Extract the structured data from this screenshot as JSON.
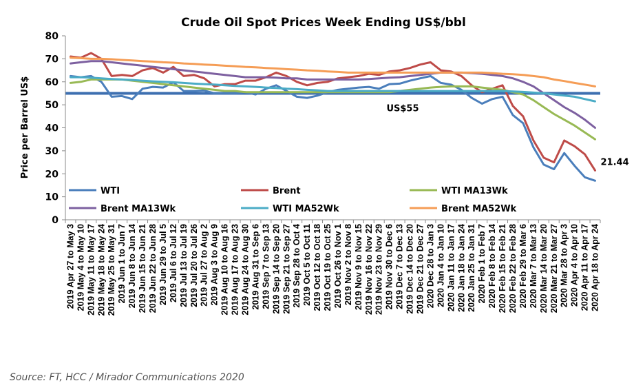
{
  "chart_data": {
    "type": "line",
    "title": "Crude Oil Spot Prices Week Ending US$/bbl",
    "ylabel": "Price per Barrel US$",
    "xlabel": "",
    "ylim": [
      0,
      80
    ],
    "yticks": [
      0,
      10,
      20,
      30,
      40,
      50,
      60,
      70,
      80
    ],
    "grid": false,
    "legend_position": "bottom",
    "categories": [
      "2019 Apr 27 to May 3",
      "2019 May 4 to May 10",
      "2019 May 11 to May 17",
      "2019 May 18 to May 24",
      "2019 May 25 to May 31",
      "2019 Jun 1 to Jun 7",
      "2019 Jun 8 to Jun 14",
      "2019 Jun 15 to Jun 21",
      "2019 Jun 22 to Jun 28",
      "2019 Jun 29 to Jul 5",
      "2019 Jul 6 to Jul 12",
      "2019 Jul 13 to Jul 19",
      "2019 Jul 20 to Jul 26",
      "2019 Jul 27 to Aug 2",
      "2019 Aug 3 to Aug 9",
      "2019 Aug 10 to Aug 16",
      "2019 Aug 17 to Aug 23",
      "2019 Aug 24 to Aug 30",
      "2019 Aug 31 to Sep 6",
      "2019 Sep 7 to Sep 13",
      "2019 Sep 14 to Sep 20",
      "2019 Sep 21 to Sep 27",
      "2019 Sep 28 to Oct 4",
      "2019 Oct 5 to Oct 11",
      "2019 Oct 12 to Oct 18",
      "2019 Oct 19 to Oct 25",
      "2019 Oct 26 to Nov 1",
      "2019 Nov 2 to Nov 8",
      "2019 Nov 9 to Nov 15",
      "2019 Nov 16 to Nov 22",
      "2019 Nov 23 to Nov 29",
      "2019 Nov 30 to Dec 6",
      "2019 Dec 7 to Dec 13",
      "2019 Dec 14 to Dec 20",
      "2019 Dec 21 to Dec 27",
      "2020 Dec 28 to Jan 3",
      "2020 Jan 4 to Jan 10",
      "2020 Jan 11 to Jan 17",
      "2020 Jan 18 to Jan 24",
      "2020 Jan 25 to Jan 31",
      "2020 Feb 1 to Feb 7",
      "2020 Feb 8 to Feb 14",
      "2020 Feb 15 to Feb 21",
      "2020 Feb 22 to Feb 28",
      "2020 Feb 29 to Mar 6",
      "2020 Mar 7 to Mar 13",
      "2020 Mar 14 to Mar 20",
      "2020 Mar 21 to Mar 27",
      "2020 Mar 28 to Apr 3",
      "2020 Apr 4 to Apr 10",
      "2020 Apr 11 to Apr 17",
      "2020 Apr 18 to Apr 24"
    ],
    "series": [
      {
        "name": "WTI",
        "color": "#4a7ebb",
        "values": [
          62.5,
          62.0,
          62.5,
          60.0,
          53.5,
          53.8,
          52.5,
          57.0,
          57.8,
          57.5,
          59.8,
          56.0,
          56.0,
          56.2,
          55.0,
          55.2,
          55.0,
          55.5,
          54.5,
          57.0,
          58.5,
          56.0,
          53.5,
          53.0,
          54.0,
          55.5,
          56.5,
          57.0,
          57.5,
          57.8,
          57.0,
          59.0,
          59.2,
          60.5,
          61.5,
          62.5,
          59.5,
          58.8,
          56.5,
          53.0,
          50.5,
          52.5,
          53.5,
          45.5,
          42.0,
          31.5,
          24.0,
          22.0,
          29.0,
          23.5,
          18.5,
          17.0
        ]
      },
      {
        "name": "Brent",
        "color": "#be4b48",
        "values": [
          71.0,
          70.5,
          72.5,
          70.0,
          62.5,
          63.0,
          62.5,
          65.0,
          66.0,
          64.0,
          66.5,
          62.5,
          63.0,
          61.5,
          58.0,
          59.0,
          59.0,
          60.5,
          60.5,
          62.0,
          64.0,
          62.5,
          60.0,
          58.5,
          59.5,
          60.0,
          61.5,
          62.0,
          62.5,
          63.5,
          63.0,
          64.5,
          65.0,
          66.0,
          67.5,
          68.5,
          65.0,
          64.5,
          62.5,
          58.5,
          55.5,
          57.0,
          58.5,
          49.5,
          45.0,
          34.5,
          27.0,
          25.0,
          34.5,
          32.0,
          28.5,
          21.44
        ]
      },
      {
        "name": "WTI MA13Wk",
        "color": "#98b954",
        "values": [
          59.5,
          60.0,
          61.0,
          61.0,
          61.0,
          61.0,
          60.5,
          60.0,
          59.5,
          59.0,
          58.5,
          58.0,
          57.5,
          57.0,
          56.5,
          56.0,
          56.0,
          55.5,
          55.5,
          55.5,
          55.5,
          55.5,
          55.5,
          55.5,
          55.5,
          55.5,
          55.5,
          55.5,
          55.5,
          55.5,
          55.5,
          55.5,
          56.0,
          56.5,
          57.0,
          57.5,
          57.8,
          58.0,
          58.0,
          58.0,
          57.5,
          57.0,
          56.5,
          55.5,
          54.5,
          52.0,
          49.0,
          46.0,
          43.5,
          41.0,
          38.0,
          35.0
        ]
      },
      {
        "name": "Brent MA13Wk",
        "color": "#7d60a0",
        "values": [
          68.0,
          68.5,
          69.0,
          69.0,
          68.5,
          68.0,
          67.5,
          67.0,
          66.5,
          66.0,
          65.5,
          65.0,
          64.5,
          64.0,
          63.5,
          63.0,
          62.5,
          62.0,
          62.0,
          62.0,
          61.8,
          61.5,
          61.5,
          61.0,
          61.0,
          61.0,
          61.0,
          61.0,
          61.0,
          61.2,
          61.5,
          61.8,
          62.0,
          62.5,
          63.0,
          63.5,
          64.0,
          64.0,
          64.0,
          63.8,
          63.5,
          63.0,
          62.5,
          61.5,
          60.0,
          58.0,
          55.0,
          52.0,
          49.0,
          46.5,
          43.5,
          40.0
        ]
      },
      {
        "name": "WTI MA52Wk",
        "color": "#4bacc6",
        "values": [
          62.0,
          62.0,
          61.8,
          61.5,
          61.2,
          61.0,
          60.8,
          60.5,
          60.2,
          60.0,
          59.8,
          59.5,
          59.2,
          59.0,
          58.8,
          58.5,
          58.2,
          58.0,
          57.8,
          57.5,
          57.3,
          57.0,
          56.8,
          56.5,
          56.3,
          56.0,
          56.0,
          56.0,
          56.0,
          56.0,
          56.0,
          56.0,
          56.0,
          56.0,
          56.0,
          56.0,
          56.0,
          56.0,
          56.0,
          56.0,
          56.0,
          56.0,
          56.0,
          55.8,
          55.6,
          55.3,
          55.0,
          54.5,
          54.0,
          53.5,
          52.5,
          51.5
        ]
      },
      {
        "name": "Brent MA52Wk",
        "color": "#f59d56",
        "values": [
          70.5,
          70.3,
          70.0,
          70.0,
          69.8,
          69.5,
          69.3,
          69.0,
          68.8,
          68.5,
          68.3,
          68.0,
          67.8,
          67.5,
          67.3,
          67.0,
          66.8,
          66.5,
          66.3,
          66.0,
          65.8,
          65.5,
          65.3,
          65.0,
          64.8,
          64.5,
          64.3,
          64.0,
          64.0,
          64.0,
          64.0,
          64.0,
          64.0,
          64.0,
          64.0,
          64.0,
          64.0,
          64.0,
          64.0,
          64.0,
          64.0,
          63.8,
          63.5,
          63.3,
          63.0,
          62.5,
          62.0,
          61.0,
          60.3,
          59.5,
          58.8,
          58.0
        ]
      }
    ],
    "reference_line": {
      "value": 55,
      "label": "US$55",
      "color": "#3d6fb0"
    },
    "end_label": {
      "series": "Brent",
      "text": "21.44"
    }
  },
  "source": "Source: FT, HCC / Mirador Communications 2020"
}
